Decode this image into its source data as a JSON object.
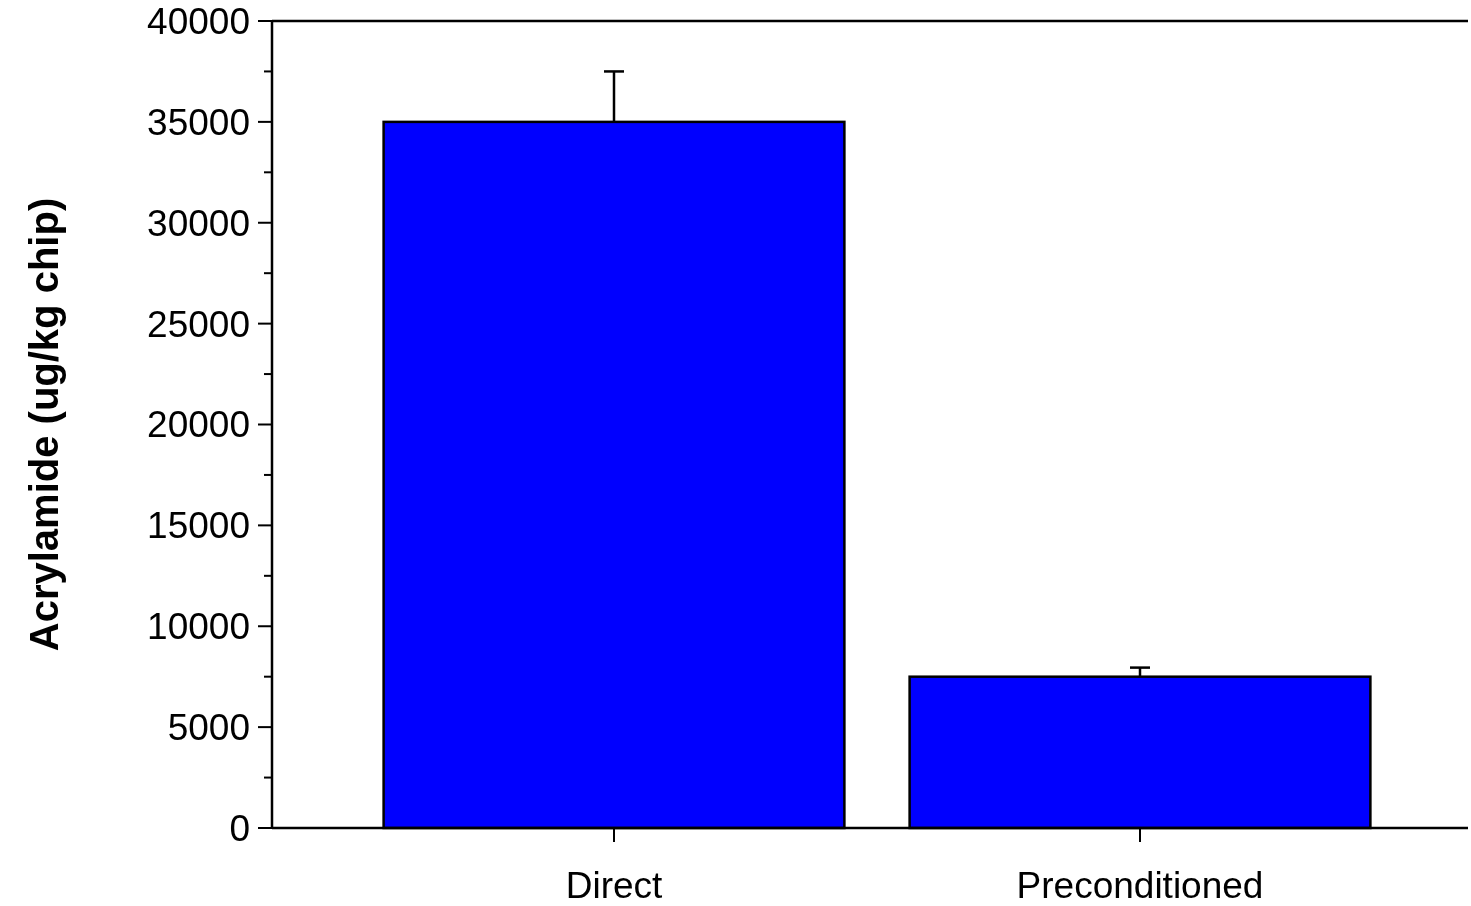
{
  "chart_data": {
    "type": "bar",
    "ylabel": "Acrylamide (ug/kg chip)",
    "categories": [
      "Direct",
      "Preconditioned"
    ],
    "values": [
      35000,
      7500
    ],
    "errors": [
      [
        35000,
        37500
      ],
      [
        7500,
        7950
      ]
    ],
    "color": "#0000ff",
    "ylim": [
      0,
      40000
    ],
    "yticks": [
      0,
      {
        "value": 2500,
        "label": null
      },
      5000,
      {
        "value": 7500,
        "label": null
      },
      10000,
      {
        "value": 12500,
        "label": null
      },
      15000,
      {
        "value": 17500,
        "label": null
      },
      20000,
      {
        "value": 22500,
        "label": null
      },
      25000,
      {
        "value": 27500,
        "label": null
      },
      30000,
      {
        "value": 32500,
        "label": null
      },
      35000,
      {
        "value": 37500,
        "label": null
      },
      40000
    ],
    "grid": false
  }
}
